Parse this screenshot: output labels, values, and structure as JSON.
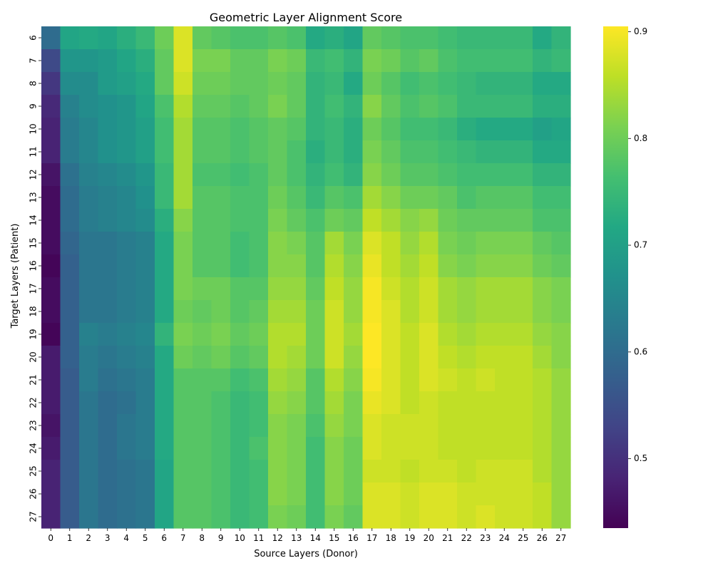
{
  "chart_data": {
    "type": "heatmap",
    "title": "Geometric Layer Alignment Score",
    "xlabel": "Source Layers (Donor)",
    "ylabel": "Target Layers (Patient)",
    "x_categories": [
      "0",
      "1",
      "2",
      "3",
      "4",
      "5",
      "6",
      "7",
      "8",
      "9",
      "10",
      "11",
      "12",
      "13",
      "14",
      "15",
      "16",
      "17",
      "18",
      "19",
      "20",
      "21",
      "22",
      "23",
      "24",
      "25",
      "26",
      "27"
    ],
    "y_categories": [
      "6",
      "7",
      "8",
      "9",
      "10",
      "11",
      "12",
      "13",
      "14",
      "15",
      "16",
      "17",
      "18",
      "19",
      "20",
      "21",
      "22",
      "23",
      "24",
      "25",
      "26",
      "27"
    ],
    "colormap": "viridis",
    "vmin": 0.435,
    "vmax": 0.905,
    "colorbar_ticks": [
      0.5,
      0.6,
      0.7,
      0.8,
      0.9
    ],
    "colorbar_tick_labels": [
      "0.5",
      "0.6",
      "0.7",
      "0.8",
      "0.9"
    ],
    "grid": false,
    "values": [
      [
        0.6,
        0.71,
        0.72,
        0.71,
        0.73,
        0.75,
        0.8,
        0.88,
        0.79,
        0.78,
        0.77,
        0.77,
        0.78,
        0.77,
        0.72,
        0.73,
        0.71,
        0.79,
        0.78,
        0.77,
        0.77,
        0.76,
        0.75,
        0.75,
        0.75,
        0.75,
        0.72,
        0.74
      ],
      [
        0.54,
        0.68,
        0.68,
        0.69,
        0.71,
        0.73,
        0.79,
        0.88,
        0.81,
        0.81,
        0.79,
        0.79,
        0.81,
        0.8,
        0.75,
        0.76,
        0.74,
        0.81,
        0.8,
        0.78,
        0.79,
        0.77,
        0.76,
        0.76,
        0.76,
        0.76,
        0.74,
        0.75
      ],
      [
        0.51,
        0.66,
        0.66,
        0.69,
        0.7,
        0.72,
        0.79,
        0.87,
        0.8,
        0.8,
        0.79,
        0.79,
        0.8,
        0.79,
        0.74,
        0.75,
        0.72,
        0.8,
        0.78,
        0.76,
        0.77,
        0.76,
        0.75,
        0.74,
        0.74,
        0.74,
        0.72,
        0.72
      ],
      [
        0.49,
        0.64,
        0.66,
        0.67,
        0.68,
        0.71,
        0.77,
        0.85,
        0.79,
        0.79,
        0.78,
        0.79,
        0.81,
        0.79,
        0.74,
        0.76,
        0.74,
        0.82,
        0.79,
        0.77,
        0.78,
        0.77,
        0.75,
        0.75,
        0.75,
        0.75,
        0.73,
        0.73
      ],
      [
        0.48,
        0.63,
        0.65,
        0.67,
        0.68,
        0.7,
        0.76,
        0.84,
        0.78,
        0.78,
        0.77,
        0.78,
        0.79,
        0.78,
        0.74,
        0.75,
        0.73,
        0.8,
        0.78,
        0.76,
        0.76,
        0.75,
        0.73,
        0.72,
        0.72,
        0.72,
        0.7,
        0.71
      ],
      [
        0.48,
        0.63,
        0.65,
        0.67,
        0.68,
        0.7,
        0.76,
        0.84,
        0.78,
        0.78,
        0.77,
        0.78,
        0.79,
        0.77,
        0.73,
        0.75,
        0.73,
        0.81,
        0.79,
        0.77,
        0.77,
        0.76,
        0.75,
        0.74,
        0.74,
        0.74,
        0.72,
        0.72
      ],
      [
        0.46,
        0.61,
        0.64,
        0.65,
        0.66,
        0.68,
        0.75,
        0.84,
        0.77,
        0.77,
        0.76,
        0.77,
        0.79,
        0.77,
        0.74,
        0.76,
        0.74,
        0.82,
        0.8,
        0.78,
        0.78,
        0.77,
        0.76,
        0.76,
        0.76,
        0.76,
        0.74,
        0.74
      ],
      [
        0.45,
        0.6,
        0.63,
        0.64,
        0.65,
        0.67,
        0.75,
        0.84,
        0.78,
        0.78,
        0.77,
        0.77,
        0.8,
        0.78,
        0.75,
        0.78,
        0.77,
        0.84,
        0.82,
        0.8,
        0.8,
        0.79,
        0.77,
        0.78,
        0.78,
        0.78,
        0.76,
        0.76
      ],
      [
        0.45,
        0.6,
        0.63,
        0.64,
        0.65,
        0.66,
        0.73,
        0.82,
        0.78,
        0.78,
        0.77,
        0.77,
        0.81,
        0.79,
        0.77,
        0.8,
        0.79,
        0.86,
        0.84,
        0.82,
        0.83,
        0.8,
        0.79,
        0.79,
        0.79,
        0.79,
        0.77,
        0.77
      ],
      [
        0.45,
        0.59,
        0.62,
        0.62,
        0.63,
        0.64,
        0.72,
        0.81,
        0.78,
        0.78,
        0.76,
        0.77,
        0.82,
        0.81,
        0.78,
        0.84,
        0.81,
        0.88,
        0.86,
        0.83,
        0.85,
        0.81,
        0.8,
        0.81,
        0.81,
        0.81,
        0.79,
        0.78
      ],
      [
        0.44,
        0.58,
        0.62,
        0.62,
        0.63,
        0.64,
        0.72,
        0.81,
        0.78,
        0.78,
        0.76,
        0.77,
        0.82,
        0.82,
        0.78,
        0.85,
        0.82,
        0.89,
        0.86,
        0.84,
        0.86,
        0.82,
        0.81,
        0.82,
        0.82,
        0.82,
        0.8,
        0.79
      ],
      [
        0.45,
        0.58,
        0.62,
        0.62,
        0.63,
        0.64,
        0.72,
        0.81,
        0.8,
        0.8,
        0.78,
        0.78,
        0.83,
        0.83,
        0.79,
        0.86,
        0.83,
        0.9,
        0.87,
        0.85,
        0.87,
        0.84,
        0.83,
        0.84,
        0.84,
        0.84,
        0.82,
        0.81
      ],
      [
        0.45,
        0.58,
        0.62,
        0.62,
        0.63,
        0.64,
        0.72,
        0.8,
        0.79,
        0.8,
        0.78,
        0.79,
        0.84,
        0.84,
        0.8,
        0.87,
        0.83,
        0.9,
        0.88,
        0.85,
        0.87,
        0.84,
        0.83,
        0.84,
        0.84,
        0.84,
        0.82,
        0.81
      ],
      [
        0.44,
        0.58,
        0.64,
        0.63,
        0.64,
        0.65,
        0.74,
        0.81,
        0.8,
        0.81,
        0.79,
        0.8,
        0.85,
        0.85,
        0.8,
        0.87,
        0.84,
        0.91,
        0.88,
        0.86,
        0.88,
        0.85,
        0.84,
        0.85,
        0.85,
        0.85,
        0.83,
        0.82
      ],
      [
        0.47,
        0.58,
        0.63,
        0.62,
        0.63,
        0.64,
        0.72,
        0.8,
        0.79,
        0.8,
        0.78,
        0.79,
        0.85,
        0.84,
        0.8,
        0.87,
        0.83,
        0.91,
        0.88,
        0.86,
        0.88,
        0.86,
        0.85,
        0.86,
        0.86,
        0.86,
        0.84,
        0.82
      ],
      [
        0.47,
        0.57,
        0.63,
        0.61,
        0.62,
        0.63,
        0.72,
        0.78,
        0.78,
        0.78,
        0.76,
        0.77,
        0.84,
        0.83,
        0.78,
        0.85,
        0.82,
        0.9,
        0.88,
        0.86,
        0.88,
        0.87,
        0.86,
        0.87,
        0.86,
        0.86,
        0.85,
        0.83
      ],
      [
        0.47,
        0.57,
        0.62,
        0.6,
        0.61,
        0.63,
        0.72,
        0.78,
        0.78,
        0.77,
        0.75,
        0.76,
        0.83,
        0.82,
        0.78,
        0.84,
        0.81,
        0.89,
        0.88,
        0.86,
        0.87,
        0.86,
        0.86,
        0.86,
        0.86,
        0.86,
        0.85,
        0.83
      ],
      [
        0.46,
        0.57,
        0.62,
        0.6,
        0.62,
        0.63,
        0.72,
        0.78,
        0.78,
        0.77,
        0.75,
        0.76,
        0.82,
        0.81,
        0.77,
        0.83,
        0.81,
        0.88,
        0.87,
        0.87,
        0.87,
        0.86,
        0.86,
        0.86,
        0.86,
        0.86,
        0.85,
        0.83
      ],
      [
        0.47,
        0.57,
        0.62,
        0.6,
        0.62,
        0.63,
        0.72,
        0.78,
        0.78,
        0.77,
        0.75,
        0.77,
        0.82,
        0.81,
        0.76,
        0.82,
        0.8,
        0.88,
        0.87,
        0.87,
        0.87,
        0.86,
        0.86,
        0.86,
        0.86,
        0.86,
        0.85,
        0.83
      ],
      [
        0.48,
        0.57,
        0.62,
        0.6,
        0.61,
        0.62,
        0.71,
        0.78,
        0.78,
        0.77,
        0.75,
        0.76,
        0.82,
        0.81,
        0.76,
        0.82,
        0.8,
        0.87,
        0.87,
        0.86,
        0.87,
        0.87,
        0.86,
        0.87,
        0.87,
        0.87,
        0.85,
        0.83
      ],
      [
        0.48,
        0.57,
        0.62,
        0.6,
        0.61,
        0.62,
        0.71,
        0.78,
        0.78,
        0.77,
        0.75,
        0.76,
        0.82,
        0.81,
        0.76,
        0.82,
        0.8,
        0.88,
        0.88,
        0.87,
        0.88,
        0.88,
        0.87,
        0.87,
        0.87,
        0.87,
        0.86,
        0.83
      ],
      [
        0.48,
        0.57,
        0.62,
        0.6,
        0.61,
        0.62,
        0.71,
        0.78,
        0.78,
        0.77,
        0.75,
        0.76,
        0.81,
        0.8,
        0.76,
        0.81,
        0.79,
        0.88,
        0.88,
        0.87,
        0.88,
        0.88,
        0.87,
        0.88,
        0.87,
        0.87,
        0.86,
        0.83
      ]
    ]
  }
}
